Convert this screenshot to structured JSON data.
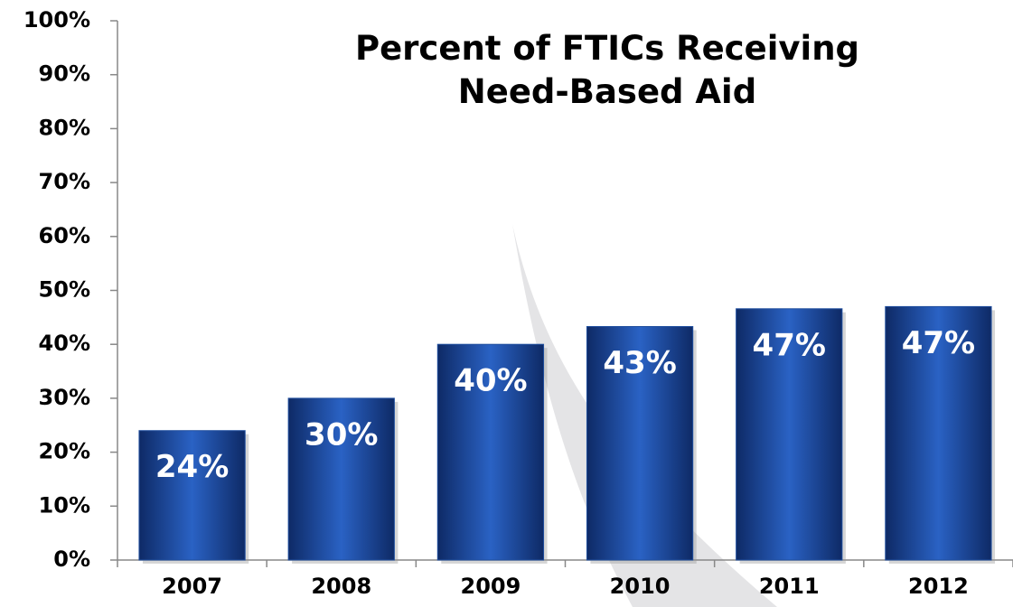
{
  "chart_data": {
    "type": "bar",
    "title": "Percent of FTICs Receiving Need-Based Aid",
    "categories": [
      "2007",
      "2008",
      "2009",
      "2010",
      "2011",
      "2012"
    ],
    "values": [
      24,
      30,
      40,
      43.3,
      46.6,
      47
    ],
    "value_labels": [
      "24%",
      "30%",
      "40%",
      "43%",
      "47%",
      "47%"
    ],
    "color": "#1f4e9e",
    "ylim": [
      0,
      100
    ],
    "yticks": [
      {
        "value": 0,
        "label": "0%"
      },
      {
        "value": 10,
        "label": "10%"
      },
      {
        "value": 20,
        "label": "20%"
      },
      {
        "value": 30,
        "label": "30%"
      },
      {
        "value": 40,
        "label": "40%"
      },
      {
        "value": 50,
        "label": "50%"
      },
      {
        "value": 60,
        "label": "60%"
      },
      {
        "value": 70,
        "label": "70%"
      },
      {
        "value": 80,
        "label": "80%"
      },
      {
        "value": 90,
        "label": "90%"
      },
      {
        "value": 100,
        "label": "100%"
      }
    ],
    "grid": false
  }
}
